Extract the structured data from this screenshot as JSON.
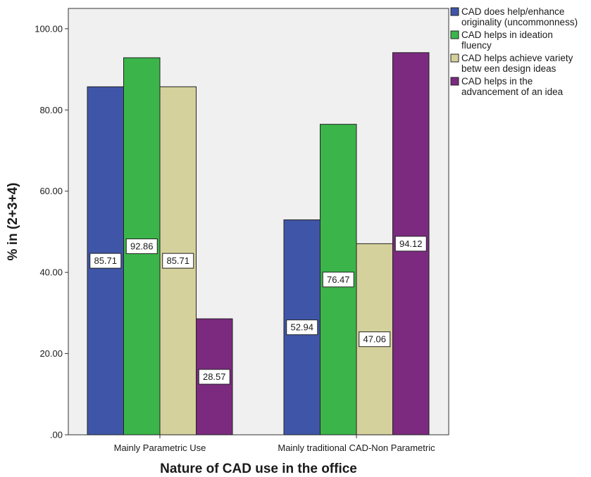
{
  "chart_data": {
    "type": "bar",
    "xlabel": "Nature of CAD use in the office",
    "ylabel": "% in (2+3+4)",
    "ylim": [
      0,
      105
    ],
    "yticks": [
      ".00",
      "20.00",
      "40.00",
      "60.00",
      "80.00",
      "100.00"
    ],
    "grid": false,
    "legend_position": "top-right",
    "categories": [
      "Mainly Parametric Use",
      "Mainly traditional CAD-Non Parametric"
    ],
    "series": [
      {
        "name": "CAD does help/enhance originality (uncommonness)",
        "legend_lines": [
          "CAD does help/enhance",
          "originality (uncommonness)"
        ],
        "color": "#3f56a8",
        "values": [
          85.71,
          52.94
        ],
        "labels": [
          "85.71",
          "52.94"
        ]
      },
      {
        "name": "CAD helps in ideation fluency",
        "legend_lines": [
          "CAD helps in ideation",
          "fluency"
        ],
        "color": "#3bb54a",
        "values": [
          92.86,
          76.47
        ],
        "labels": [
          "92.86",
          "76.47"
        ]
      },
      {
        "name": "CAD helps achieve variety betw een design ideas",
        "legend_lines": [
          "CAD helps achieve variety",
          "betw een design ideas"
        ],
        "color": "#d5d19c",
        "values": [
          85.71,
          47.06
        ],
        "labels": [
          "85.71",
          "47.06"
        ]
      },
      {
        "name": "CAD helps in the advancement of an idea",
        "legend_lines": [
          "CAD helps in the",
          "advancement of an idea"
        ],
        "color": "#7b2a7f",
        "values": [
          28.57,
          94.12
        ],
        "labels": [
          "28.57",
          "94.12"
        ]
      }
    ]
  }
}
